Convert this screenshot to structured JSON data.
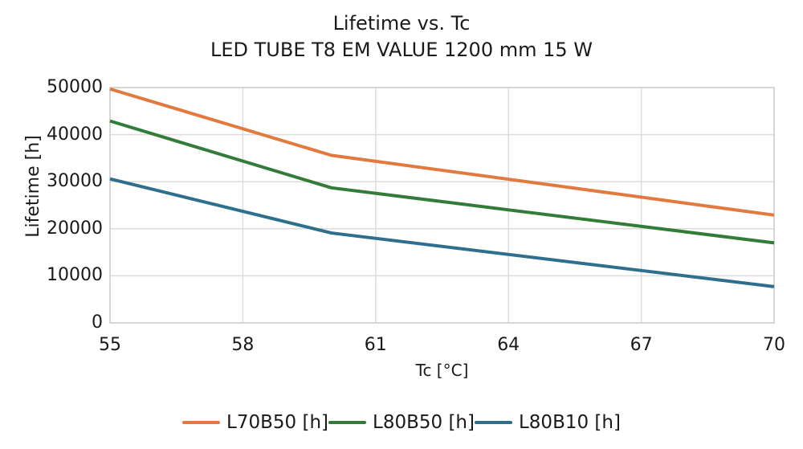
{
  "chart": {
    "title": "Lifetime vs. Tc",
    "subtitle": "LED TUBE T8 EM VALUE 1200 mm 15 W",
    "xlabel": "Tc [°C]",
    "ylabel": "Lifetime [h]"
  },
  "chart_data": {
    "type": "line",
    "title": "Lifetime vs. Tc",
    "subtitle": "LED TUBE T8 EM VALUE 1200 mm 15 W",
    "xlabel": "Tc [°C]",
    "ylabel": "Lifetime [h]",
    "x": [
      55,
      60,
      70
    ],
    "series": [
      {
        "name": "L70B50 [h]",
        "color": "#E2793F",
        "values": [
          49700,
          35600,
          22900
        ]
      },
      {
        "name": "L80B50 [h]",
        "color": "#337B38",
        "values": [
          42900,
          28700,
          17000
        ]
      },
      {
        "name": "L80B10 [h]",
        "color": "#2E6F8E",
        "values": [
          30600,
          19100,
          7700
        ]
      }
    ],
    "xticks": [
      55,
      58,
      61,
      64,
      67,
      70
    ],
    "yticks": [
      0,
      10000,
      20000,
      30000,
      40000,
      50000
    ],
    "xtick_labels": [
      "55",
      "58",
      "61",
      "64",
      "67",
      "70"
    ],
    "ytick_labels": [
      "0",
      "10000",
      "20000",
      "30000",
      "40000",
      "50000"
    ],
    "xlim": [
      55,
      70
    ],
    "ylim": [
      0,
      50000
    ],
    "grid": true,
    "legend_position": "bottom",
    "colors": {
      "grid": "#DCDCDC",
      "frame": "#C9C9C9",
      "text": "#1A1A1A",
      "background": "#FFFFFF"
    }
  }
}
